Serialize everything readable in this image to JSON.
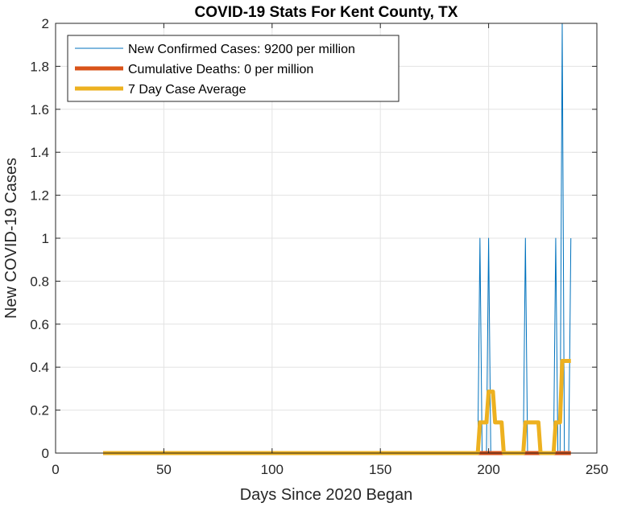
{
  "chart_data": {
    "type": "line",
    "title": "COVID-19 Stats For Kent County, TX",
    "xlabel": "Days Since 2020 Began",
    "ylabel": "New COVID-19 Cases",
    "xlim": [
      0,
      250
    ],
    "ylim": [
      0,
      2
    ],
    "xticks": [
      0,
      50,
      100,
      150,
      200,
      250
    ],
    "yticks": [
      0,
      0.2,
      0.4,
      0.6,
      0.8,
      1,
      1.2,
      1.4,
      1.6,
      1.8,
      2
    ],
    "xtick_labels": [
      "0",
      "50",
      "100",
      "150",
      "200",
      "250"
    ],
    "ytick_labels": [
      "0",
      "0.2",
      "0.4",
      "0.6",
      "0.8",
      "1",
      "1.2",
      "1.4",
      "1.6",
      "1.8",
      "2"
    ],
    "grid": true,
    "legend_position": "top-left",
    "series": [
      {
        "name": "New Confirmed Cases: 9200 per million",
        "color": "#0072BD",
        "line_width": "thin",
        "points": [
          [
            22,
            0
          ],
          [
            195,
            0
          ],
          [
            196,
            1
          ],
          [
            197,
            0
          ],
          [
            199,
            0
          ],
          [
            200,
            1
          ],
          [
            201,
            0
          ],
          [
            216,
            0
          ],
          [
            217,
            1
          ],
          [
            218,
            0
          ],
          [
            230,
            0
          ],
          [
            231,
            1
          ],
          [
            232,
            0
          ],
          [
            233,
            0
          ],
          [
            234,
            2
          ],
          [
            235,
            0
          ],
          [
            237,
            0
          ],
          [
            238,
            1
          ]
        ]
      },
      {
        "name": "Cumulative Deaths: 0 per million",
        "color": "#D95319",
        "line_width": "thick",
        "points": [
          [
            22,
            0
          ],
          [
            238,
            0
          ]
        ]
      },
      {
        "name": "7 Day Case Average",
        "color": "#EDB120",
        "line_width": "thick",
        "points": [
          [
            22,
            0
          ],
          [
            195,
            0
          ],
          [
            196,
            0.143
          ],
          [
            199,
            0.143
          ],
          [
            200,
            0.286
          ],
          [
            202,
            0.286
          ],
          [
            203,
            0.143
          ],
          [
            206,
            0.143
          ],
          [
            207,
            0
          ],
          [
            216,
            0
          ],
          [
            217,
            0.143
          ],
          [
            223,
            0.143
          ],
          [
            224,
            0
          ],
          [
            230,
            0
          ],
          [
            231,
            0.143
          ],
          [
            233,
            0.143
          ],
          [
            234,
            0.429
          ],
          [
            238,
            0.429
          ]
        ]
      }
    ]
  }
}
